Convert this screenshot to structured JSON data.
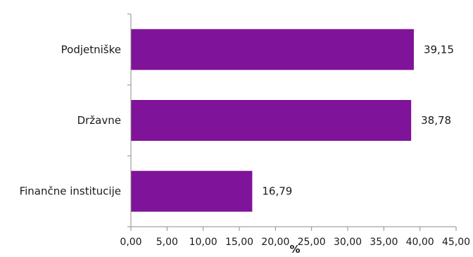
{
  "chart_data": {
    "type": "bar",
    "orientation": "horizontal",
    "categories": [
      "Podjetniške",
      "Državne",
      "Finančne institucije"
    ],
    "values": [
      39.15,
      38.78,
      16.79
    ],
    "data_labels": [
      "39,15",
      "38,78",
      "16,79"
    ],
    "xlabel": "%",
    "xlim": [
      0,
      45
    ],
    "x_ticks": [
      "0,00",
      "5,00",
      "10,00",
      "15,00",
      "20,00",
      "25,00",
      "30,00",
      "35,00",
      "40,00",
      "45,00"
    ],
    "grid": false,
    "legend": "none",
    "bar_color": "#7f1399"
  }
}
